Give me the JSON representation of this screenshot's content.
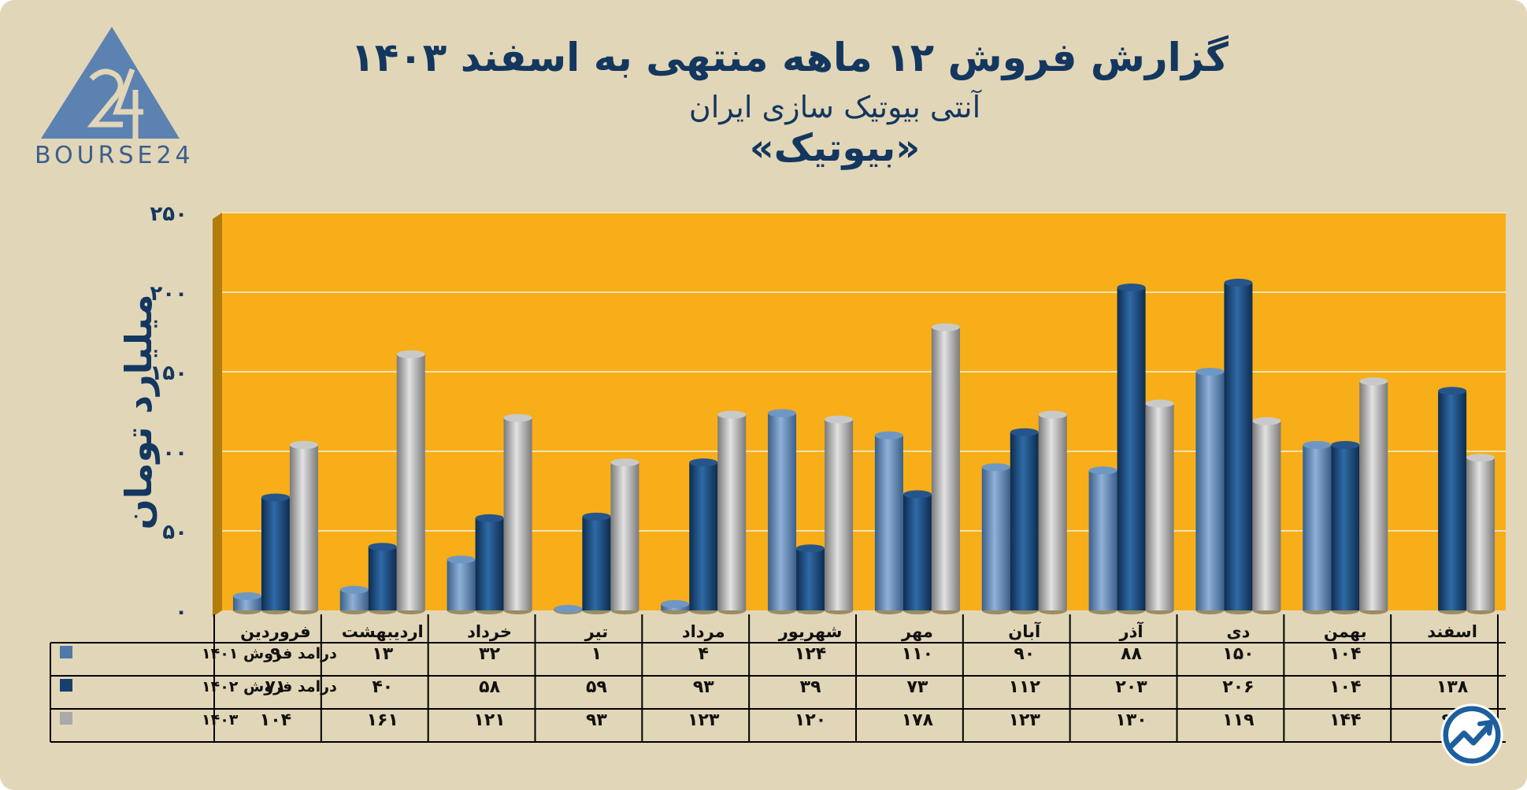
{
  "header": {
    "title": "گزارش  فروش ۱۲ ماهه منتهی به اسفند ۱۴۰۳",
    "subtitle": "آنتی بیوتیک سازی ایران",
    "ticker": "«بیوتیک»"
  },
  "logo": {
    "text": "BOURSE24",
    "icon": "bourse24-logo-icon"
  },
  "badge_icon": "trend-up-circle-icon",
  "colors": {
    "background": "#e2d6b8",
    "plot_area": "#f7ae18",
    "series_1401": "#4f79a8",
    "series_1402": "#173f6b",
    "series_1403": "#a9a9a9",
    "text": "#13375e"
  },
  "chart_data": {
    "type": "bar",
    "ylabel": "میلیارد تومان",
    "ylim": [
      0,
      250
    ],
    "yticks": [
      "۰",
      "۵۰",
      "۱۰۰",
      "۱۵۰",
      "۲۰۰",
      "۲۵۰"
    ],
    "categories": [
      "فروردین",
      "اردیبهشت",
      "خرداد",
      "تیر",
      "مرداد",
      "شهریور",
      "مهر",
      "آبان",
      "آذر",
      "دی",
      "بهمن",
      "اسفند"
    ],
    "series": [
      {
        "name": "درامد فروش ۱۴۰۱",
        "values": [
          9,
          13,
          32,
          1,
          4,
          124,
          110,
          90,
          88,
          150,
          104,
          null
        ],
        "labels": [
          "۹",
          "۱۳",
          "۳۲",
          "۱",
          "۴",
          "۱۲۴",
          "۱۱۰",
          "۹۰",
          "۸۸",
          "۱۵۰",
          "۱۰۴",
          ""
        ]
      },
      {
        "name": "درامد فروش ۱۴۰۲",
        "values": [
          71,
          40,
          58,
          59,
          93,
          39,
          73,
          112,
          203,
          206,
          104,
          138
        ],
        "labels": [
          "۷۱",
          "۴۰",
          "۵۸",
          "۵۹",
          "۹۳",
          "۳۹",
          "۷۳",
          "۱۱۲",
          "۲۰۳",
          "۲۰۶",
          "۱۰۴",
          "۱۳۸"
        ]
      },
      {
        "name": "۱۴۰۳",
        "values": [
          104,
          161,
          121,
          93,
          123,
          120,
          178,
          123,
          130,
          119,
          144,
          96
        ],
        "labels": [
          "۱۰۴",
          "۱۶۱",
          "۱۲۱",
          "۹۳",
          "۱۲۳",
          "۱۲۰",
          "۱۷۸",
          "۱۲۳",
          "۱۳۰",
          "۱۱۹",
          "۱۴۴",
          "۹۶"
        ]
      }
    ],
    "grid": true,
    "legend": "table-left"
  }
}
